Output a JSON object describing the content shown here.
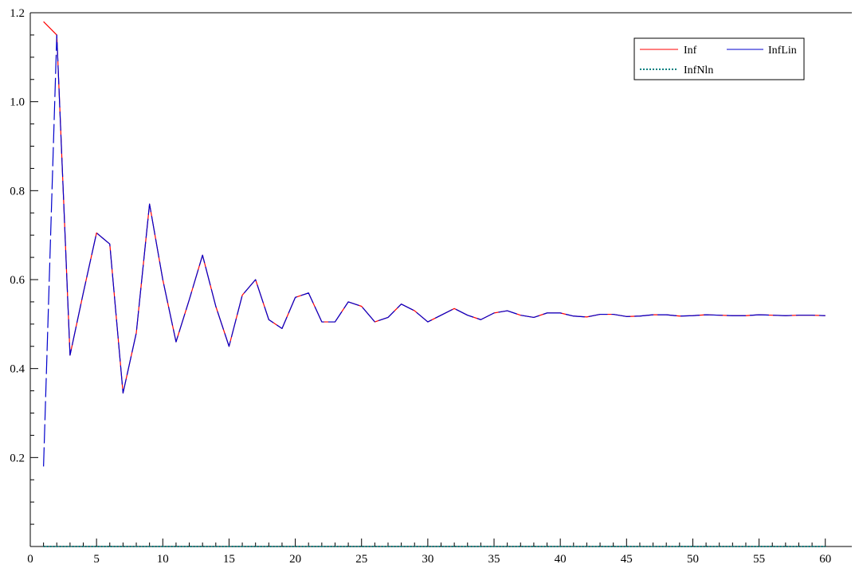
{
  "chart_data": {
    "type": "line",
    "title": "",
    "xlabel": "",
    "ylabel": "",
    "xlim": [
      0,
      62
    ],
    "ylim": [
      0,
      1.2
    ],
    "x_ticks": [
      0,
      5,
      10,
      15,
      20,
      25,
      30,
      35,
      40,
      45,
      50,
      55,
      60
    ],
    "y_ticks": [
      0.2,
      0.4,
      0.6,
      0.8,
      1.0,
      1.2
    ],
    "grid": false,
    "legend_position": "top-right",
    "x": [
      1,
      2,
      3,
      4,
      5,
      6,
      7,
      8,
      9,
      10,
      11,
      12,
      13,
      14,
      15,
      16,
      17,
      18,
      19,
      20,
      21,
      22,
      23,
      24,
      25,
      26,
      27,
      28,
      29,
      30,
      31,
      32,
      33,
      34,
      35,
      36,
      37,
      38,
      39,
      40,
      41,
      42,
      43,
      44,
      45,
      46,
      47,
      48,
      49,
      50,
      51,
      52,
      53,
      54,
      55,
      56,
      57,
      58,
      59,
      60
    ],
    "series": [
      {
        "name": "Inf",
        "color": "#ff0000",
        "style": "solid",
        "values": [
          1.18,
          1.15,
          0.43,
          0.57,
          0.705,
          0.68,
          0.345,
          0.48,
          0.77,
          0.6,
          0.46,
          0.555,
          0.655,
          0.54,
          0.45,
          0.565,
          0.6,
          0.51,
          0.49,
          0.56,
          0.57,
          0.505,
          0.505,
          0.55,
          0.54,
          0.505,
          0.515,
          0.545,
          0.53,
          0.505,
          0.52,
          0.535,
          0.52,
          0.51,
          0.525,
          0.53,
          0.52,
          0.515,
          0.525,
          0.525,
          0.518,
          0.516,
          0.522,
          0.522,
          0.517,
          0.518,
          0.521,
          0.521,
          0.518,
          0.519,
          0.521,
          0.52,
          0.519,
          0.519,
          0.521,
          0.52,
          0.519,
          0.52,
          0.52,
          0.519
        ]
      },
      {
        "name": "InfLin",
        "color": "#0000cc",
        "style": "solid",
        "values": [
          0.18,
          1.15,
          0.43,
          0.57,
          0.705,
          0.68,
          0.345,
          0.48,
          0.77,
          0.6,
          0.46,
          0.555,
          0.655,
          0.54,
          0.45,
          0.565,
          0.6,
          0.51,
          0.49,
          0.56,
          0.57,
          0.505,
          0.505,
          0.55,
          0.54,
          0.505,
          0.515,
          0.545,
          0.53,
          0.505,
          0.52,
          0.535,
          0.52,
          0.51,
          0.525,
          0.53,
          0.52,
          0.515,
          0.525,
          0.525,
          0.518,
          0.516,
          0.522,
          0.522,
          0.517,
          0.518,
          0.521,
          0.521,
          0.518,
          0.519,
          0.521,
          0.52,
          0.519,
          0.519,
          0.521,
          0.52,
          0.519,
          0.52,
          0.52,
          0.519
        ]
      },
      {
        "name": "InfNln",
        "color": "#008080",
        "style": "dotted",
        "values": [
          0,
          0,
          0,
          0,
          0,
          0,
          0,
          0,
          0,
          0,
          0,
          0,
          0,
          0,
          0,
          0,
          0,
          0,
          0,
          0,
          0,
          0,
          0,
          0,
          0,
          0,
          0,
          0,
          0,
          0,
          0,
          0,
          0,
          0,
          0,
          0,
          0,
          0,
          0,
          0,
          0,
          0,
          0,
          0,
          0,
          0,
          0,
          0,
          0,
          0,
          0,
          0,
          0,
          0,
          0,
          0,
          0,
          0,
          0,
          0
        ]
      }
    ]
  }
}
